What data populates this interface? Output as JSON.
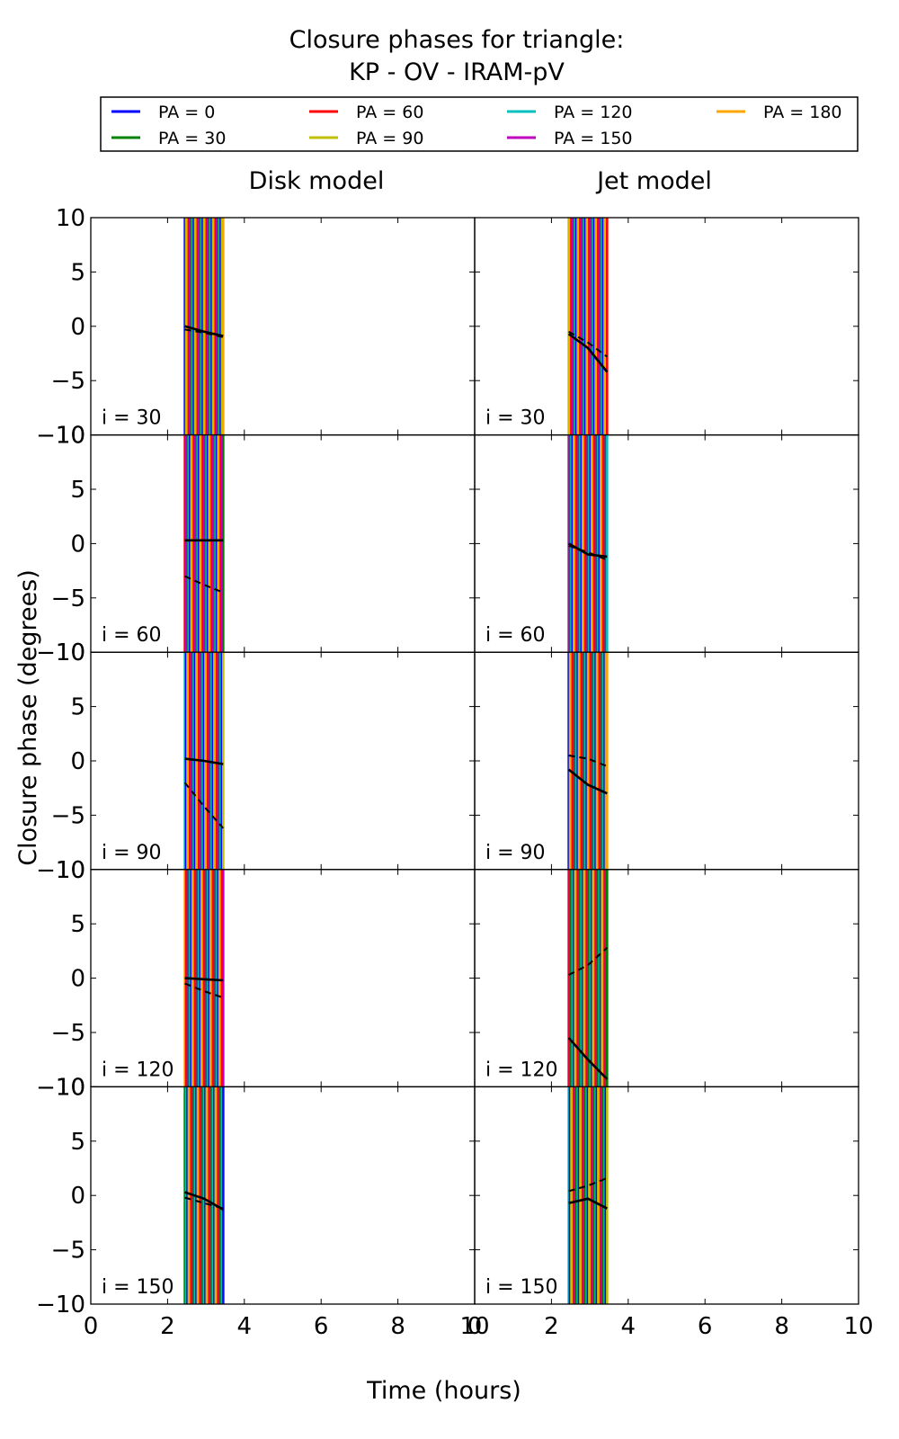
{
  "title_line1": "Closure phases for triangle:",
  "title_line2": "KP - OV - IRAM-pV",
  "xlabel": "Time (hours)",
  "ylabel": "Closure phase (degrees)",
  "legend": [
    {
      "label": "PA = 0",
      "color": "#0000ff"
    },
    {
      "label": "PA = 30",
      "color": "#008000"
    },
    {
      "label": "PA = 60",
      "color": "#ff0000"
    },
    {
      "label": "PA = 90",
      "color": "#bfbf00"
    },
    {
      "label": "PA = 120",
      "color": "#00bfbf"
    },
    {
      "label": "PA = 150",
      "color": "#bf00bf"
    },
    {
      "label": "PA = 180",
      "color": "#ffa500"
    }
  ],
  "chart_data": {
    "type": "line",
    "title": "Closure phases for triangle: KP - OV - IRAM-pV",
    "xlabel": "Time (hours)",
    "ylabel": "Closure phase (degrees)",
    "xlim": [
      0,
      10
    ],
    "ylim": [
      -10,
      10
    ],
    "xticks": [
      "0",
      "2",
      "4",
      "6",
      "8",
      "10"
    ],
    "yticks": [
      "−10",
      "−5",
      "0",
      "5",
      "10"
    ],
    "legend_position": "top",
    "columns": [
      "Disk model",
      "Jet model"
    ],
    "rows": [
      "i = 30",
      "i = 60",
      "i = 90",
      "i = 120",
      "i = 150"
    ],
    "time_range_hours": [
      2.45,
      3.45
    ],
    "series_names": [
      "PA = 0",
      "PA = 30",
      "PA = 60",
      "PA = 90",
      "PA = 120",
      "PA = 150",
      "PA = 180"
    ],
    "panels": [
      {
        "column": "Disk model",
        "row": "i = 30",
        "solid": [
          0.0,
          -0.5,
          -0.9
        ],
        "dashed": [
          -0.3,
          -0.6,
          -1.0
        ]
      },
      {
        "column": "Disk model",
        "row": "i = 60",
        "solid": [
          0.3,
          0.3,
          0.3
        ],
        "dashed": [
          -3.0,
          -3.8,
          -4.5
        ]
      },
      {
        "column": "Disk model",
        "row": "i = 90",
        "solid": [
          0.2,
          0.0,
          -0.3
        ],
        "dashed": [
          -2.0,
          -4.2,
          -6.2
        ]
      },
      {
        "column": "Disk model",
        "row": "i = 120",
        "solid": [
          0.0,
          -0.1,
          -0.2
        ],
        "dashed": [
          -0.5,
          -1.2,
          -1.8
        ]
      },
      {
        "column": "Disk model",
        "row": "i = 150",
        "solid": [
          0.3,
          -0.3,
          -1.3
        ],
        "dashed": [
          -0.2,
          -0.7,
          -1.2
        ]
      },
      {
        "column": "Jet model",
        "row": "i = 30",
        "solid": [
          -0.7,
          -2.0,
          -4.2
        ],
        "dashed": [
          -0.5,
          -1.5,
          -2.8
        ]
      },
      {
        "column": "Jet model",
        "row": "i = 60",
        "solid": [
          0.0,
          -1.0,
          -1.2
        ],
        "dashed": [
          -0.2,
          -0.8,
          -1.5
        ]
      },
      {
        "column": "Jet model",
        "row": "i = 90",
        "solid": [
          -0.8,
          -2.2,
          -3.0
        ],
        "dashed": [
          0.5,
          0.2,
          -0.5
        ]
      },
      {
        "column": "Jet model",
        "row": "i = 120",
        "solid": [
          -5.5,
          -7.5,
          -9.3
        ],
        "dashed": [
          0.3,
          1.2,
          2.8
        ]
      },
      {
        "column": "Jet model",
        "row": "i = 150",
        "solid": [
          -0.7,
          -0.3,
          -1.2
        ],
        "dashed": [
          0.4,
          0.9,
          1.6
        ]
      }
    ]
  }
}
